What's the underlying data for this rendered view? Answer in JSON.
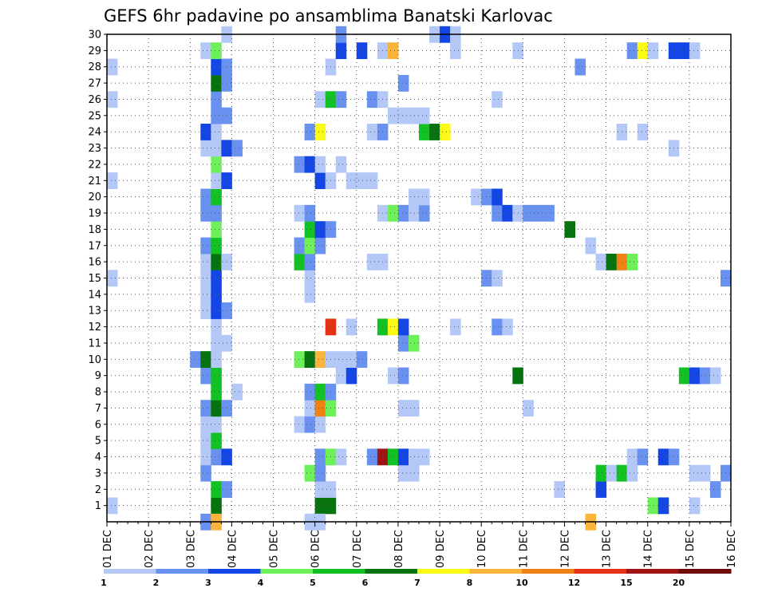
{
  "chart_data": {
    "type": "heatmap",
    "title": "GEFS 6hr padavine po ansamblima Banatski Karlovac",
    "xlabel": "",
    "ylabel": "",
    "x_tick_labels": [
      "01 DEC",
      "02 DEC",
      "03 DEC",
      "04 DEC",
      "05 DEC",
      "06 DEC",
      "07 DEC",
      "08 DEC",
      "09 DEC",
      "10 DEC",
      "11 DEC",
      "12 DEC",
      "13 DEC",
      "14 DEC",
      "15 DEC",
      "16 DEC"
    ],
    "y_tick_labels": [
      "1",
      "2",
      "3",
      "4",
      "5",
      "6",
      "7",
      "8",
      "9",
      "10",
      "11",
      "12",
      "13",
      "14",
      "15",
      "16",
      "17",
      "18",
      "19",
      "20",
      "21",
      "22",
      "23",
      "24",
      "25",
      "26",
      "27",
      "28",
      "29",
      "30"
    ],
    "grid": true,
    "legend_placement": "bottom",
    "legend": {
      "labels": [
        "1",
        "2",
        "3",
        "4",
        "5",
        "6",
        "7",
        "8",
        "10",
        "12",
        "15",
        "20"
      ],
      "colors": [
        "#b4c8f8",
        "#6991f0",
        "#1446e6",
        "#6ef05a",
        "#12c224",
        "#07730f",
        "#fafa14",
        "#fab43c",
        "#f08214",
        "#e63214",
        "#a01414",
        "#6e0a0a"
      ]
    },
    "series_note_members": "y = ensemble member (1-30); x = forecast step (6 h steps from 01 DEC 00UTC); level = precipitation class index 1-12 matching legend",
    "cells": [
      {
        "m": 1,
        "t": 0,
        "l": 1
      },
      {
        "m": 1,
        "t": 10,
        "l": 6
      },
      {
        "m": 1,
        "t": 20,
        "l": 6
      },
      {
        "m": 1,
        "t": 21,
        "l": 6
      },
      {
        "m": 1,
        "t": 52,
        "l": 4
      },
      {
        "m": 1,
        "t": 53,
        "l": 3
      },
      {
        "m": 1,
        "t": 56,
        "l": 1
      },
      {
        "m": 2,
        "t": 10,
        "l": 5
      },
      {
        "m": 2,
        "t": 11,
        "l": 2
      },
      {
        "m": 2,
        "t": 20,
        "l": 1
      },
      {
        "m": 2,
        "t": 21,
        "l": 1
      },
      {
        "m": 2,
        "t": 43,
        "l": 1
      },
      {
        "m": 2,
        "t": 47,
        "l": 3
      },
      {
        "m": 2,
        "t": 58,
        "l": 2
      },
      {
        "m": 3,
        "t": 9,
        "l": 2
      },
      {
        "m": 3,
        "t": 19,
        "l": 4
      },
      {
        "m": 3,
        "t": 20,
        "l": 2
      },
      {
        "m": 3,
        "t": 28,
        "l": 1
      },
      {
        "m": 3,
        "t": 29,
        "l": 1
      },
      {
        "m": 3,
        "t": 47,
        "l": 5
      },
      {
        "m": 3,
        "t": 48,
        "l": 1
      },
      {
        "m": 3,
        "t": 49,
        "l": 5
      },
      {
        "m": 3,
        "t": 50,
        "l": 1
      },
      {
        "m": 3,
        "t": 56,
        "l": 1
      },
      {
        "m": 3,
        "t": 57,
        "l": 1
      },
      {
        "m": 3,
        "t": 59,
        "l": 2
      },
      {
        "m": 4,
        "t": 9,
        "l": 1
      },
      {
        "m": 4,
        "t": 10,
        "l": 2
      },
      {
        "m": 4,
        "t": 11,
        "l": 3
      },
      {
        "m": 4,
        "t": 20,
        "l": 2
      },
      {
        "m": 4,
        "t": 21,
        "l": 4
      },
      {
        "m": 4,
        "t": 22,
        "l": 1
      },
      {
        "m": 4,
        "t": 25,
        "l": 2
      },
      {
        "m": 4,
        "t": 26,
        "l": 11
      },
      {
        "m": 4,
        "t": 27,
        "l": 5
      },
      {
        "m": 4,
        "t": 28,
        "l": 3
      },
      {
        "m": 4,
        "t": 29,
        "l": 1
      },
      {
        "m": 4,
        "t": 30,
        "l": 1
      },
      {
        "m": 4,
        "t": 50,
        "l": 1
      },
      {
        "m": 4,
        "t": 51,
        "l": 2
      },
      {
        "m": 4,
        "t": 53,
        "l": 3
      },
      {
        "m": 4,
        "t": 54,
        "l": 2
      },
      {
        "m": 5,
        "t": 9,
        "l": 1
      },
      {
        "m": 5,
        "t": 10,
        "l": 5
      },
      {
        "m": 6,
        "t": 9,
        "l": 1
      },
      {
        "m": 6,
        "t": 10,
        "l": 1
      },
      {
        "m": 6,
        "t": 18,
        "l": 1
      },
      {
        "m": 6,
        "t": 19,
        "l": 2
      },
      {
        "m": 6,
        "t": 20,
        "l": 1
      },
      {
        "m": 7,
        "t": 9,
        "l": 2
      },
      {
        "m": 7,
        "t": 10,
        "l": 6
      },
      {
        "m": 7,
        "t": 11,
        "l": 2
      },
      {
        "m": 7,
        "t": 19,
        "l": 1
      },
      {
        "m": 7,
        "t": 20,
        "l": 9
      },
      {
        "m": 7,
        "t": 21,
        "l": 4
      },
      {
        "m": 7,
        "t": 28,
        "l": 1
      },
      {
        "m": 7,
        "t": 29,
        "l": 1
      },
      {
        "m": 7,
        "t": 40,
        "l": 1
      },
      {
        "m": 8,
        "t": 10,
        "l": 5
      },
      {
        "m": 8,
        "t": 12,
        "l": 1
      },
      {
        "m": 8,
        "t": 19,
        "l": 2
      },
      {
        "m": 8,
        "t": 20,
        "l": 5
      },
      {
        "m": 8,
        "t": 21,
        "l": 2
      },
      {
        "m": 9,
        "t": 9,
        "l": 2
      },
      {
        "m": 9,
        "t": 10,
        "l": 5
      },
      {
        "m": 9,
        "t": 22,
        "l": 1
      },
      {
        "m": 9,
        "t": 23,
        "l": 3
      },
      {
        "m": 9,
        "t": 27,
        "l": 1
      },
      {
        "m": 9,
        "t": 28,
        "l": 2
      },
      {
        "m": 9,
        "t": 39,
        "l": 6
      },
      {
        "m": 9,
        "t": 55,
        "l": 5
      },
      {
        "m": 9,
        "t": 56,
        "l": 3
      },
      {
        "m": 9,
        "t": 57,
        "l": 2
      },
      {
        "m": 9,
        "t": 58,
        "l": 1
      },
      {
        "m": 10,
        "t": 8,
        "l": 2
      },
      {
        "m": 10,
        "t": 9,
        "l": 6
      },
      {
        "m": 10,
        "t": 10,
        "l": 1
      },
      {
        "m": 10,
        "t": 18,
        "l": 4
      },
      {
        "m": 10,
        "t": 19,
        "l": 6
      },
      {
        "m": 10,
        "t": 20,
        "l": 8
      },
      {
        "m": 10,
        "t": 21,
        "l": 1
      },
      {
        "m": 10,
        "t": 22,
        "l": 1
      },
      {
        "m": 10,
        "t": 23,
        "l": 1
      },
      {
        "m": 10,
        "t": 24,
        "l": 2
      },
      {
        "m": 11,
        "t": 10,
        "l": 1
      },
      {
        "m": 11,
        "t": 11,
        "l": 1
      },
      {
        "m": 11,
        "t": 28,
        "l": 2
      },
      {
        "m": 11,
        "t": 29,
        "l": 4
      },
      {
        "m": 12,
        "t": 10,
        "l": 1
      },
      {
        "m": 12,
        "t": 21,
        "l": 10
      },
      {
        "m": 12,
        "t": 23,
        "l": 1
      },
      {
        "m": 12,
        "t": 26,
        "l": 5
      },
      {
        "m": 12,
        "t": 27,
        "l": 7
      },
      {
        "m": 12,
        "t": 28,
        "l": 3
      },
      {
        "m": 12,
        "t": 33,
        "l": 1
      },
      {
        "m": 12,
        "t": 37,
        "l": 2
      },
      {
        "m": 12,
        "t": 38,
        "l": 1
      },
      {
        "m": 13,
        "t": 9,
        "l": 1
      },
      {
        "m": 13,
        "t": 10,
        "l": 3
      },
      {
        "m": 13,
        "t": 11,
        "l": 2
      },
      {
        "m": 14,
        "t": 9,
        "l": 1
      },
      {
        "m": 14,
        "t": 10,
        "l": 3
      },
      {
        "m": 14,
        "t": 19,
        "l": 1
      },
      {
        "m": 15,
        "t": 0,
        "l": 1
      },
      {
        "m": 15,
        "t": 9,
        "l": 1
      },
      {
        "m": 15,
        "t": 10,
        "l": 3
      },
      {
        "m": 15,
        "t": 19,
        "l": 1
      },
      {
        "m": 15,
        "t": 36,
        "l": 2
      },
      {
        "m": 15,
        "t": 37,
        "l": 1
      },
      {
        "m": 15,
        "t": 59,
        "l": 2
      },
      {
        "m": 16,
        "t": 9,
        "l": 1
      },
      {
        "m": 16,
        "t": 10,
        "l": 6
      },
      {
        "m": 16,
        "t": 11,
        "l": 1
      },
      {
        "m": 16,
        "t": 18,
        "l": 5
      },
      {
        "m": 16,
        "t": 19,
        "l": 2
      },
      {
        "m": 16,
        "t": 25,
        "l": 1
      },
      {
        "m": 16,
        "t": 26,
        "l": 1
      },
      {
        "m": 16,
        "t": 47,
        "l": 1
      },
      {
        "m": 16,
        "t": 48,
        "l": 6
      },
      {
        "m": 16,
        "t": 49,
        "l": 9
      },
      {
        "m": 16,
        "t": 50,
        "l": 4
      },
      {
        "m": 17,
        "t": 9,
        "l": 2
      },
      {
        "m": 17,
        "t": 10,
        "l": 5
      },
      {
        "m": 17,
        "t": 18,
        "l": 2
      },
      {
        "m": 17,
        "t": 19,
        "l": 4
      },
      {
        "m": 17,
        "t": 20,
        "l": 2
      },
      {
        "m": 17,
        "t": 46,
        "l": 1
      },
      {
        "m": 18,
        "t": 10,
        "l": 4
      },
      {
        "m": 18,
        "t": 19,
        "l": 5
      },
      {
        "m": 18,
        "t": 20,
        "l": 3
      },
      {
        "m": 18,
        "t": 21,
        "l": 2
      },
      {
        "m": 18,
        "t": 44,
        "l": 6
      },
      {
        "m": 19,
        "t": 9,
        "l": 2
      },
      {
        "m": 19,
        "t": 10,
        "l": 2
      },
      {
        "m": 19,
        "t": 18,
        "l": 1
      },
      {
        "m": 19,
        "t": 19,
        "l": 2
      },
      {
        "m": 19,
        "t": 26,
        "l": 1
      },
      {
        "m": 19,
        "t": 27,
        "l": 4
      },
      {
        "m": 19,
        "t": 28,
        "l": 2
      },
      {
        "m": 19,
        "t": 29,
        "l": 1
      },
      {
        "m": 19,
        "t": 30,
        "l": 2
      },
      {
        "m": 19,
        "t": 37,
        "l": 2
      },
      {
        "m": 19,
        "t": 38,
        "l": 3
      },
      {
        "m": 19,
        "t": 39,
        "l": 1
      },
      {
        "m": 19,
        "t": 40,
        "l": 2
      },
      {
        "m": 19,
        "t": 41,
        "l": 2
      },
      {
        "m": 19,
        "t": 42,
        "l": 2
      },
      {
        "m": 20,
        "t": 9,
        "l": 2
      },
      {
        "m": 20,
        "t": 10,
        "l": 5
      },
      {
        "m": 20,
        "t": 29,
        "l": 1
      },
      {
        "m": 20,
        "t": 30,
        "l": 1
      },
      {
        "m": 20,
        "t": 35,
        "l": 1
      },
      {
        "m": 20,
        "t": 36,
        "l": 2
      },
      {
        "m": 20,
        "t": 37,
        "l": 3
      },
      {
        "m": 21,
        "t": 0,
        "l": 1
      },
      {
        "m": 21,
        "t": 10,
        "l": 1
      },
      {
        "m": 21,
        "t": 11,
        "l": 3
      },
      {
        "m": 21,
        "t": 20,
        "l": 3
      },
      {
        "m": 21,
        "t": 21,
        "l": 1
      },
      {
        "m": 21,
        "t": 23,
        "l": 1
      },
      {
        "m": 21,
        "t": 24,
        "l": 1
      },
      {
        "m": 21,
        "t": 25,
        "l": 1
      },
      {
        "m": 22,
        "t": 10,
        "l": 4
      },
      {
        "m": 22,
        "t": 18,
        "l": 2
      },
      {
        "m": 22,
        "t": 19,
        "l": 3
      },
      {
        "m": 22,
        "t": 20,
        "l": 1
      },
      {
        "m": 22,
        "t": 22,
        "l": 1
      },
      {
        "m": 23,
        "t": 9,
        "l": 1
      },
      {
        "m": 23,
        "t": 10,
        "l": 1
      },
      {
        "m": 23,
        "t": 11,
        "l": 3
      },
      {
        "m": 23,
        "t": 12,
        "l": 2
      },
      {
        "m": 23,
        "t": 54,
        "l": 1
      },
      {
        "m": 24,
        "t": 9,
        "l": 3
      },
      {
        "m": 24,
        "t": 10,
        "l": 1
      },
      {
        "m": 24,
        "t": 19,
        "l": 2
      },
      {
        "m": 24,
        "t": 20,
        "l": 7
      },
      {
        "m": 24,
        "t": 25,
        "l": 1
      },
      {
        "m": 24,
        "t": 26,
        "l": 2
      },
      {
        "m": 24,
        "t": 30,
        "l": 5
      },
      {
        "m": 24,
        "t": 31,
        "l": 6
      },
      {
        "m": 24,
        "t": 32,
        "l": 7
      },
      {
        "m": 24,
        "t": 49,
        "l": 1
      },
      {
        "m": 24,
        "t": 51,
        "l": 1
      },
      {
        "m": 25,
        "t": 10,
        "l": 2
      },
      {
        "m": 25,
        "t": 11,
        "l": 2
      },
      {
        "m": 25,
        "t": 27,
        "l": 1
      },
      {
        "m": 25,
        "t": 28,
        "l": 1
      },
      {
        "m": 25,
        "t": 29,
        "l": 1
      },
      {
        "m": 25,
        "t": 30,
        "l": 1
      },
      {
        "m": 26,
        "t": 0,
        "l": 1
      },
      {
        "m": 26,
        "t": 10,
        "l": 2
      },
      {
        "m": 26,
        "t": 20,
        "l": 1
      },
      {
        "m": 26,
        "t": 21,
        "l": 5
      },
      {
        "m": 26,
        "t": 22,
        "l": 2
      },
      {
        "m": 26,
        "t": 25,
        "l": 2
      },
      {
        "m": 26,
        "t": 26,
        "l": 1
      },
      {
        "m": 26,
        "t": 37,
        "l": 1
      },
      {
        "m": 27,
        "t": 10,
        "l": 6
      },
      {
        "m": 27,
        "t": 11,
        "l": 2
      },
      {
        "m": 27,
        "t": 28,
        "l": 2
      },
      {
        "m": 28,
        "t": 0,
        "l": 1
      },
      {
        "m": 28,
        "t": 10,
        "l": 3
      },
      {
        "m": 28,
        "t": 11,
        "l": 2
      },
      {
        "m": 28,
        "t": 21,
        "l": 1
      },
      {
        "m": 28,
        "t": 45,
        "l": 2
      },
      {
        "m": 29,
        "t": 9,
        "l": 1
      },
      {
        "m": 29,
        "t": 10,
        "l": 4
      },
      {
        "m": 29,
        "t": 22,
        "l": 3
      },
      {
        "m": 29,
        "t": 24,
        "l": 3
      },
      {
        "m": 29,
        "t": 26,
        "l": 1
      },
      {
        "m": 29,
        "t": 27,
        "l": 8
      },
      {
        "m": 29,
        "t": 33,
        "l": 1
      },
      {
        "m": 29,
        "t": 39,
        "l": 1
      },
      {
        "m": 29,
        "t": 50,
        "l": 2
      },
      {
        "m": 29,
        "t": 51,
        "l": 7
      },
      {
        "m": 29,
        "t": 52,
        "l": 1
      },
      {
        "m": 29,
        "t": 54,
        "l": 3
      },
      {
        "m": 29,
        "t": 55,
        "l": 3
      },
      {
        "m": 29,
        "t": 56,
        "l": 1
      },
      {
        "m": 30,
        "t": 11,
        "l": 1
      },
      {
        "m": 30,
        "t": 22,
        "l": 2
      },
      {
        "m": 30,
        "t": 31,
        "l": 1
      },
      {
        "m": 30,
        "t": 32,
        "l": 3
      },
      {
        "m": 30,
        "t": 33,
        "l": 1
      },
      {
        "m": 0,
        "t": 9,
        "l": 2
      },
      {
        "m": 0,
        "t": 10,
        "l": 8
      },
      {
        "m": 0,
        "t": 19,
        "l": 1
      },
      {
        "m": 0,
        "t": 20,
        "l": 1
      },
      {
        "m": 0,
        "t": 46,
        "l": 8
      }
    ]
  }
}
